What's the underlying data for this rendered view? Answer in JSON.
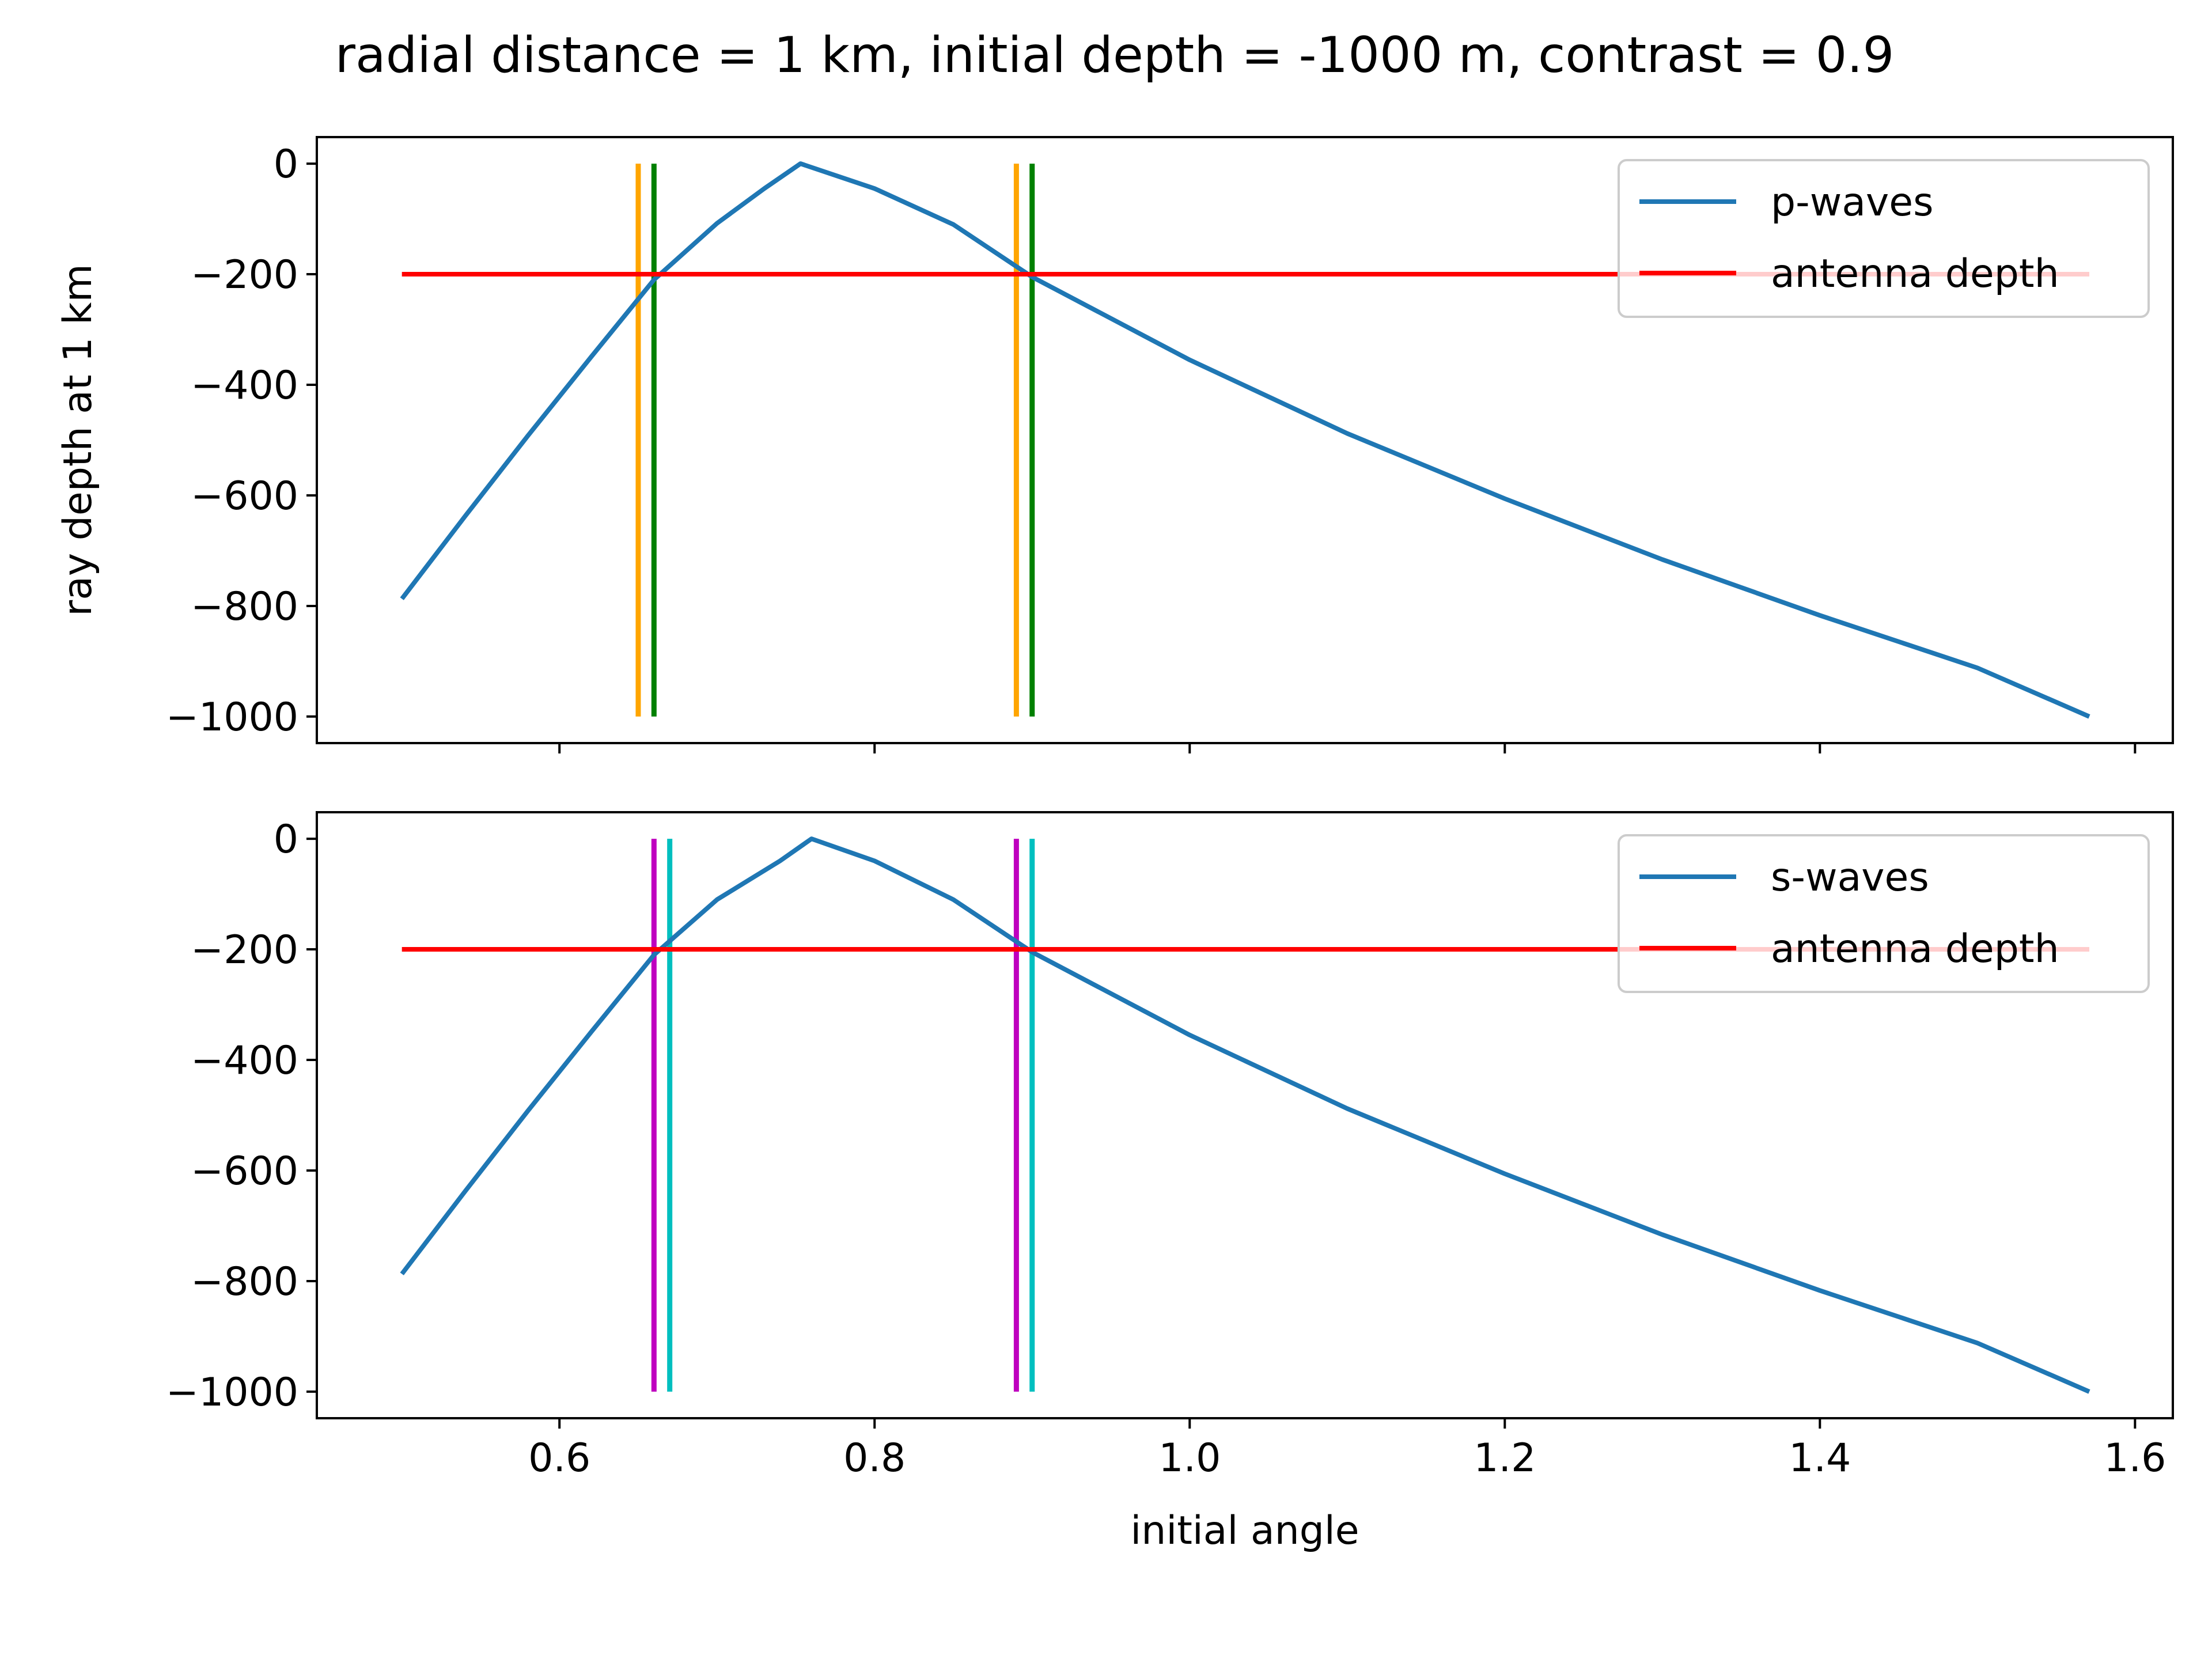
{
  "figure": {
    "title": "radial distance = 1 km, initial depth = -1000 m, contrast = 0.9"
  },
  "chart_data": [
    {
      "type": "line",
      "ylabel": "ray depth at 1 km",
      "xlabel": "",
      "xlim": [
        0.446,
        1.624
      ],
      "ylim": [
        -1048,
        48
      ],
      "xticks": [
        0.6,
        0.8,
        1.0,
        1.2,
        1.4,
        1.6
      ],
      "xticklabels_shown": false,
      "yticks": [
        0,
        -200,
        -400,
        -600,
        -800,
        -1000
      ],
      "ytick_labels": [
        "0",
        "−200",
        "−400",
        "−600",
        "−800",
        "−1000"
      ],
      "legend_position": "top-right",
      "series": [
        {
          "name": "p-waves",
          "color": "#1f77b4",
          "points": [
            [
              0.5,
              -787
            ],
            [
              0.54,
              -638
            ],
            [
              0.58,
              -492
            ],
            [
              0.62,
              -350
            ],
            [
              0.66,
              -210
            ],
            [
              0.7,
              -108
            ],
            [
              0.73,
              -45
            ],
            [
              0.753,
              0
            ],
            [
              0.8,
              -45
            ],
            [
              0.85,
              -110
            ],
            [
              0.9,
              -205
            ],
            [
              1.0,
              -355
            ],
            [
              1.1,
              -488
            ],
            [
              1.2,
              -606
            ],
            [
              1.3,
              -716
            ],
            [
              1.4,
              -817
            ],
            [
              1.5,
              -912
            ],
            [
              1.571,
              -1000
            ]
          ]
        },
        {
          "name": "antenna depth",
          "color": "#ff0000",
          "points": [
            [
              0.5,
              -200
            ],
            [
              1.571,
              -200
            ]
          ]
        }
      ],
      "vertical_lines": [
        {
          "x": 0.65,
          "y": [
            -1000,
            0
          ],
          "color": "#ffa500"
        },
        {
          "x": 0.66,
          "y": [
            -1000,
            0
          ],
          "color": "#008000"
        },
        {
          "x": 0.89,
          "y": [
            -1000,
            0
          ],
          "color": "#ffa500"
        },
        {
          "x": 0.9,
          "y": [
            -1000,
            0
          ],
          "color": "#008000"
        }
      ]
    },
    {
      "type": "line",
      "ylabel": "",
      "xlabel": "initial angle",
      "xlim": [
        0.446,
        1.624
      ],
      "ylim": [
        -1048,
        48
      ],
      "xticks": [
        0.6,
        0.8,
        1.0,
        1.2,
        1.4,
        1.6
      ],
      "xtick_labels": [
        "0.6",
        "0.8",
        "1.0",
        "1.2",
        "1.4",
        "1.6"
      ],
      "xticklabels_shown": true,
      "yticks": [
        0,
        -200,
        -400,
        -600,
        -800,
        -1000
      ],
      "ytick_labels": [
        "0",
        "−200",
        "−400",
        "−600",
        "−800",
        "−1000"
      ],
      "legend_position": "top-right",
      "series": [
        {
          "name": "s-waves",
          "color": "#1f77b4",
          "points": [
            [
              0.5,
              -787
            ],
            [
              0.54,
              -638
            ],
            [
              0.58,
              -492
            ],
            [
              0.62,
              -350
            ],
            [
              0.66,
              -210
            ],
            [
              0.7,
              -110
            ],
            [
              0.74,
              -40
            ],
            [
              0.76,
              0
            ],
            [
              0.8,
              -40
            ],
            [
              0.85,
              -110
            ],
            [
              0.9,
              -205
            ],
            [
              1.0,
              -355
            ],
            [
              1.1,
              -488
            ],
            [
              1.2,
              -606
            ],
            [
              1.3,
              -716
            ],
            [
              1.4,
              -817
            ],
            [
              1.5,
              -912
            ],
            [
              1.571,
              -1000
            ]
          ]
        },
        {
          "name": "antenna depth",
          "color": "#ff0000",
          "points": [
            [
              0.5,
              -200
            ],
            [
              1.571,
              -200
            ]
          ]
        }
      ],
      "vertical_lines": [
        {
          "x": 0.66,
          "y": [
            -1000,
            0
          ],
          "color": "#bf00bf"
        },
        {
          "x": 0.67,
          "y": [
            -1000,
            0
          ],
          "color": "#00bfbf"
        },
        {
          "x": 0.89,
          "y": [
            -1000,
            0
          ],
          "color": "#bf00bf"
        },
        {
          "x": 0.9,
          "y": [
            -1000,
            0
          ],
          "color": "#00bfbf"
        }
      ]
    }
  ]
}
